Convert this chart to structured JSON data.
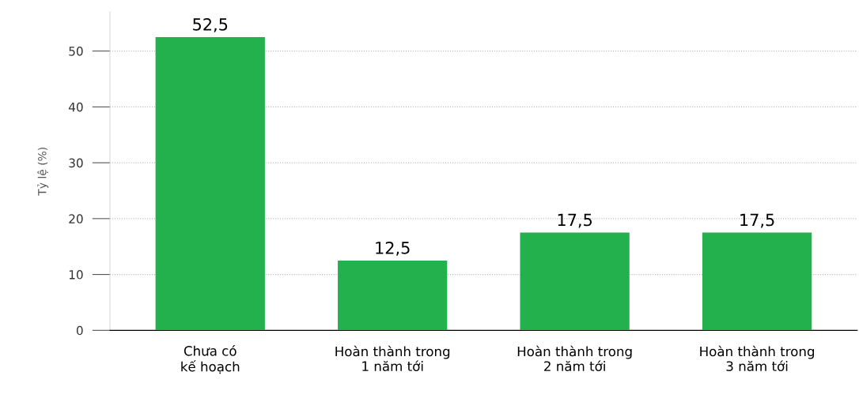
{
  "chart_data": {
    "type": "bar",
    "ylabel": "Tỷ lệ (%)",
    "categories": [
      "Chưa có\nkế hoạch",
      "Hoàn thành trong\n1 năm tới",
      "Hoàn thành trong\n2 năm tới",
      "Hoàn thành trong\n3 năm tới"
    ],
    "values": [
      52.5,
      12.5,
      17.5,
      17.5
    ],
    "value_labels": [
      "52,5",
      "12,5",
      "17,5",
      "17,5"
    ],
    "color": "#22b14c",
    "ylim": [
      0,
      57
    ],
    "yticks": [
      0,
      10,
      20,
      30,
      40,
      50
    ],
    "grid": "y"
  }
}
